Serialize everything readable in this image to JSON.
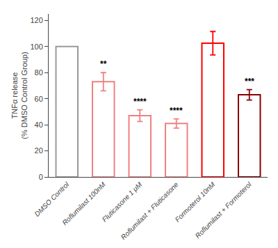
{
  "chart_data": {
    "type": "bar",
    "categories": [
      "DMSO Control",
      "Roflumilast 100nM",
      "Fluticasone 1 μM",
      "Roflumilast + Fluticasone",
      "Formoterol 10nM",
      "Roflumilast + Formoterol"
    ],
    "values": [
      100.0,
      73.0,
      47.0,
      41.0,
      102.5,
      63.0
    ],
    "sem": [
      0.0,
      7.0,
      4.5,
      3.5,
      9.0,
      4.0
    ],
    "colors": [
      "#999999",
      "#f08080",
      "#f08080",
      "#f08080",
      "#ff0000",
      "#8b0000"
    ],
    "annotations": [
      {
        "x": "Roflumilast 100nM",
        "text": "**"
      },
      {
        "x": "Fluticasone 1 μM",
        "text": "****"
      },
      {
        "x": "Roflumilast + Fluticasone",
        "text": "****"
      },
      {
        "x": "Roflumilast + Formoterol",
        "text": "***"
      }
    ],
    "ylabel": "TNFα release\n(% DMSO Control Group)",
    "ylim": [
      0,
      125
    ],
    "yticks": [
      0,
      20,
      40,
      60,
      80,
      100,
      120
    ],
    "grid": false
  }
}
